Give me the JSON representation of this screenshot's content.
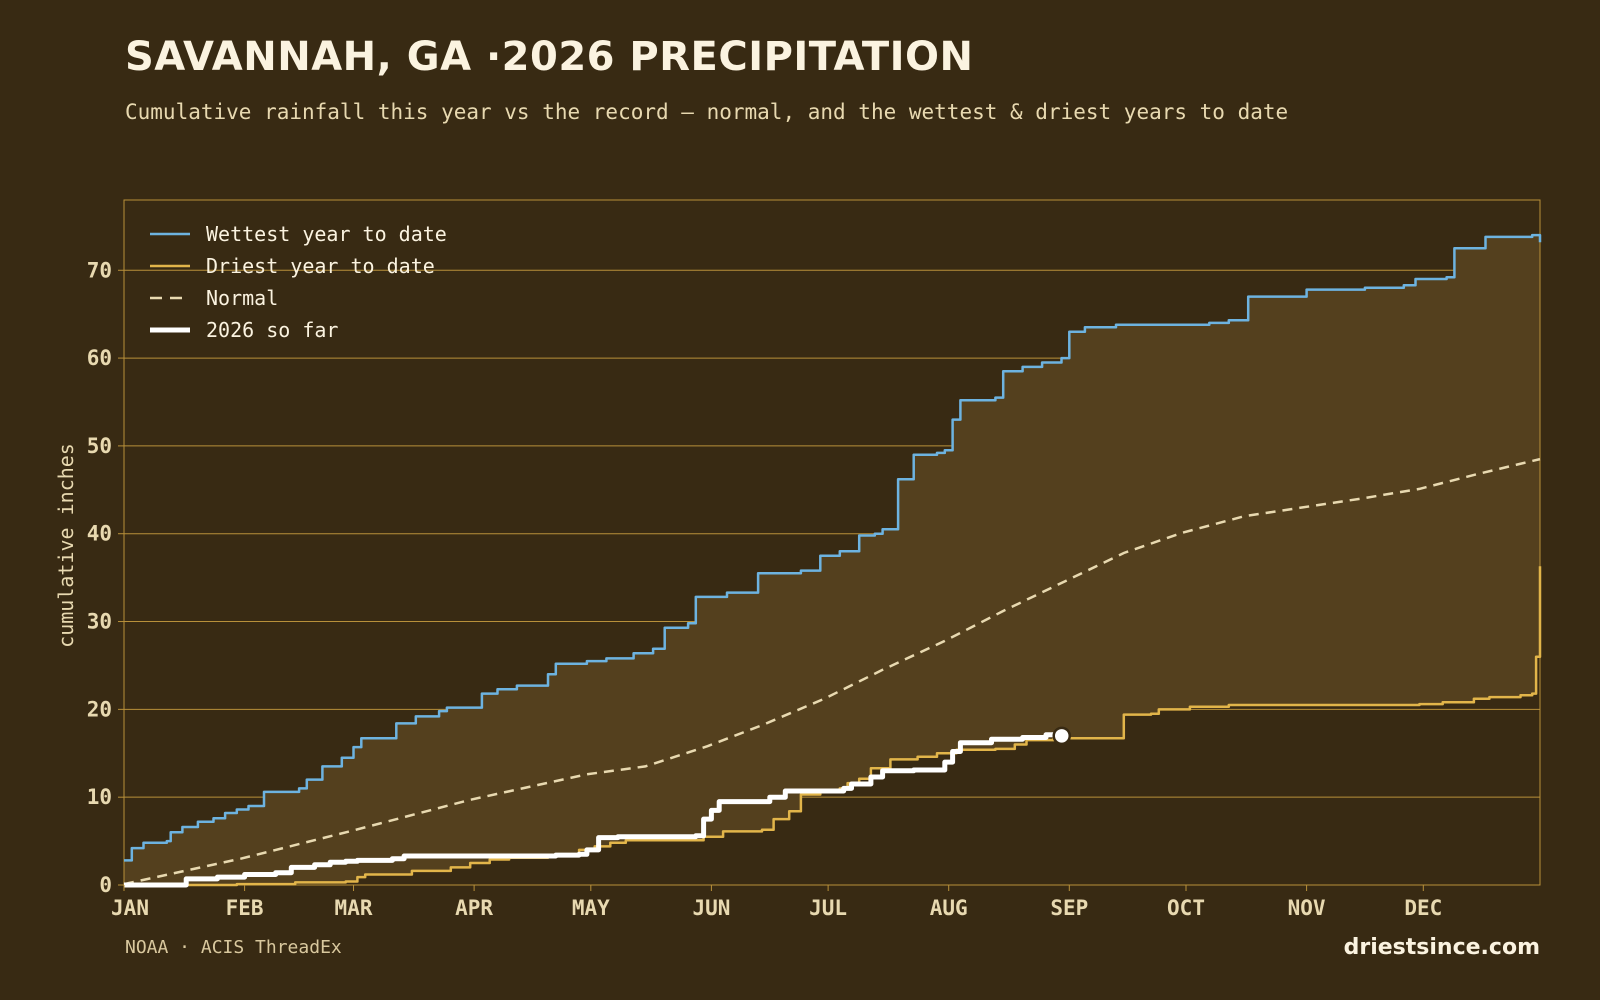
{
  "header": {
    "title": "SAVANNAH, GA ·2026 PRECIPITATION",
    "subtitle": "Cumulative rainfall this year vs the record — normal, and the wettest & driest years to date"
  },
  "footer": {
    "source": "NOAA · ACIS ThreadEx",
    "brand": "driestsince.com"
  },
  "colors": {
    "background": "#382a13",
    "band_fill": "#54401e",
    "grid": "#b8903a",
    "wettest": "#6db3e0",
    "driest": "#e2b54a",
    "normal": "#e8d9b0",
    "current": "#ffffff"
  },
  "chart_data": {
    "type": "line",
    "x_unit": "day of year",
    "xlim": [
      1,
      365
    ],
    "ylim": [
      0,
      78
    ],
    "ylabel": "cumulative inches",
    "yticks": [
      0,
      10,
      20,
      30,
      40,
      50,
      60,
      70
    ],
    "months": [
      {
        "label": "JAN",
        "day": 1
      },
      {
        "label": "FEB",
        "day": 32
      },
      {
        "label": "MAR",
        "day": 60
      },
      {
        "label": "APR",
        "day": 91
      },
      {
        "label": "MAY",
        "day": 121
      },
      {
        "label": "JUN",
        "day": 152
      },
      {
        "label": "JUL",
        "day": 182
      },
      {
        "label": "AUG",
        "day": 213
      },
      {
        "label": "SEP",
        "day": 244
      },
      {
        "label": "OCT",
        "day": 274
      },
      {
        "label": "NOV",
        "day": 305
      },
      {
        "label": "DEC",
        "day": 335
      }
    ],
    "legend_position": "top-left",
    "series": [
      {
        "name": "Wettest year to date",
        "style": "solid",
        "points": [
          [
            1,
            2.8
          ],
          [
            3,
            4.2
          ],
          [
            6,
            4.8
          ],
          [
            9,
            4.8
          ],
          [
            12,
            5.0
          ],
          [
            13,
            6.0
          ],
          [
            16,
            6.6
          ],
          [
            20,
            7.2
          ],
          [
            24,
            7.6
          ],
          [
            27,
            8.2
          ],
          [
            30,
            8.6
          ],
          [
            33,
            9.0
          ],
          [
            35,
            9.0
          ],
          [
            37,
            10.6
          ],
          [
            44,
            10.6
          ],
          [
            46,
            11.0
          ],
          [
            48,
            12.0
          ],
          [
            52,
            13.5
          ],
          [
            57,
            14.5
          ],
          [
            60,
            15.7
          ],
          [
            62,
            16.7
          ],
          [
            71,
            18.4
          ],
          [
            76,
            19.2
          ],
          [
            82,
            19.8
          ],
          [
            84,
            20.2
          ],
          [
            90,
            20.2
          ],
          [
            93,
            21.8
          ],
          [
            97,
            22.3
          ],
          [
            102,
            22.7
          ],
          [
            110,
            24.0
          ],
          [
            112,
            25.2
          ],
          [
            120,
            25.5
          ],
          [
            125,
            25.8
          ],
          [
            132,
            26.4
          ],
          [
            137,
            26.9
          ],
          [
            140,
            29.3
          ],
          [
            146,
            29.8
          ],
          [
            148,
            32.8
          ],
          [
            156,
            33.3
          ],
          [
            164,
            35.5
          ],
          [
            175,
            35.8
          ],
          [
            180,
            37.5
          ],
          [
            185,
            38.0
          ],
          [
            190,
            39.8
          ],
          [
            194,
            40.0
          ],
          [
            196,
            40.5
          ],
          [
            200,
            46.2
          ],
          [
            204,
            49.0
          ],
          [
            210,
            49.2
          ],
          [
            212,
            49.5
          ],
          [
            214,
            53.0
          ],
          [
            216,
            55.2
          ],
          [
            225,
            55.5
          ],
          [
            227,
            58.5
          ],
          [
            232,
            59.0
          ],
          [
            237,
            59.5
          ],
          [
            242,
            60.0
          ],
          [
            244,
            63.0
          ],
          [
            248,
            63.5
          ],
          [
            256,
            63.8
          ],
          [
            280,
            64.0
          ],
          [
            285,
            64.3
          ],
          [
            290,
            67.0
          ],
          [
            300,
            67.0
          ],
          [
            305,
            67.8
          ],
          [
            320,
            68.0
          ],
          [
            330,
            68.3
          ],
          [
            333,
            69.0
          ],
          [
            341,
            69.2
          ],
          [
            343,
            72.5
          ],
          [
            349,
            72.5
          ],
          [
            351,
            73.8
          ],
          [
            363,
            74.0
          ],
          [
            365,
            73.2
          ]
        ]
      },
      {
        "name": "Driest year to date",
        "style": "solid",
        "points": [
          [
            1,
            0.0
          ],
          [
            25,
            0.0
          ],
          [
            30,
            0.1
          ],
          [
            45,
            0.3
          ],
          [
            58,
            0.4
          ],
          [
            61,
            0.9
          ],
          [
            63,
            1.2
          ],
          [
            75,
            1.6
          ],
          [
            85,
            2.0
          ],
          [
            90,
            2.5
          ],
          [
            95,
            2.9
          ],
          [
            100,
            3.1
          ],
          [
            110,
            3.4
          ],
          [
            118,
            4.0
          ],
          [
            122,
            4.4
          ],
          [
            126,
            4.8
          ],
          [
            130,
            5.1
          ],
          [
            150,
            5.5
          ],
          [
            155,
            6.1
          ],
          [
            165,
            6.3
          ],
          [
            168,
            7.5
          ],
          [
            172,
            8.4
          ],
          [
            175,
            10.3
          ],
          [
            180,
            10.6
          ],
          [
            185,
            11.0
          ],
          [
            187,
            11.6
          ],
          [
            190,
            12.1
          ],
          [
            193,
            13.3
          ],
          [
            198,
            14.3
          ],
          [
            205,
            14.6
          ],
          [
            210,
            15.0
          ],
          [
            215,
            15.4
          ],
          [
            225,
            15.5
          ],
          [
            230,
            16.0
          ],
          [
            233,
            16.5
          ],
          [
            240,
            16.7
          ],
          [
            256,
            16.7
          ],
          [
            258,
            19.4
          ],
          [
            265,
            19.5
          ],
          [
            267,
            20.0
          ],
          [
            275,
            20.3
          ],
          [
            285,
            20.5
          ],
          [
            320,
            20.5
          ],
          [
            334,
            20.6
          ],
          [
            340,
            20.8
          ],
          [
            348,
            21.2
          ],
          [
            352,
            21.4
          ],
          [
            360,
            21.6
          ],
          [
            363,
            21.8
          ],
          [
            364,
            26.0
          ],
          [
            365,
            36.3
          ]
        ]
      },
      {
        "name": "Normal",
        "style": "dashed",
        "points": [
          [
            1,
            0.1
          ],
          [
            31,
            3.0
          ],
          [
            59,
            6.1
          ],
          [
            90,
            9.7
          ],
          [
            120,
            12.6
          ],
          [
            135,
            13.5
          ],
          [
            151,
            15.8
          ],
          [
            165,
            18.2
          ],
          [
            181,
            21.2
          ],
          [
            196,
            24.5
          ],
          [
            212,
            27.8
          ],
          [
            227,
            31.2
          ],
          [
            243,
            34.6
          ],
          [
            258,
            37.8
          ],
          [
            273,
            40.1
          ],
          [
            289,
            42.0
          ],
          [
            304,
            43.0
          ],
          [
            319,
            44.0
          ],
          [
            334,
            45.1
          ],
          [
            349,
            46.8
          ],
          [
            365,
            48.5
          ]
        ]
      },
      {
        "name": "2026 so far",
        "style": "bold",
        "end_day": 240,
        "end_value": 17.1,
        "points": [
          [
            1,
            0.0
          ],
          [
            16,
            0.0
          ],
          [
            17,
            0.7
          ],
          [
            25,
            0.9
          ],
          [
            32,
            1.2
          ],
          [
            40,
            1.4
          ],
          [
            44,
            2.0
          ],
          [
            50,
            2.3
          ],
          [
            54,
            2.6
          ],
          [
            58,
            2.7
          ],
          [
            61,
            2.8
          ],
          [
            70,
            3.0
          ],
          [
            73,
            3.3
          ],
          [
            80,
            3.3
          ],
          [
            95,
            3.3
          ],
          [
            112,
            3.4
          ],
          [
            118,
            3.5
          ],
          [
            120,
            4.0
          ],
          [
            123,
            5.4
          ],
          [
            128,
            5.5
          ],
          [
            148,
            5.6
          ],
          [
            150,
            7.5
          ],
          [
            152,
            8.5
          ],
          [
            154,
            9.5
          ],
          [
            167,
            10.0
          ],
          [
            171,
            10.7
          ],
          [
            186,
            11.0
          ],
          [
            188,
            11.5
          ],
          [
            193,
            12.3
          ],
          [
            196,
            13.0
          ],
          [
            204,
            13.1
          ],
          [
            212,
            14.0
          ],
          [
            214,
            15.2
          ],
          [
            216,
            16.2
          ],
          [
            224,
            16.6
          ],
          [
            232,
            16.8
          ],
          [
            238,
            17.1
          ],
          [
            240,
            17.1
          ]
        ]
      }
    ]
  }
}
